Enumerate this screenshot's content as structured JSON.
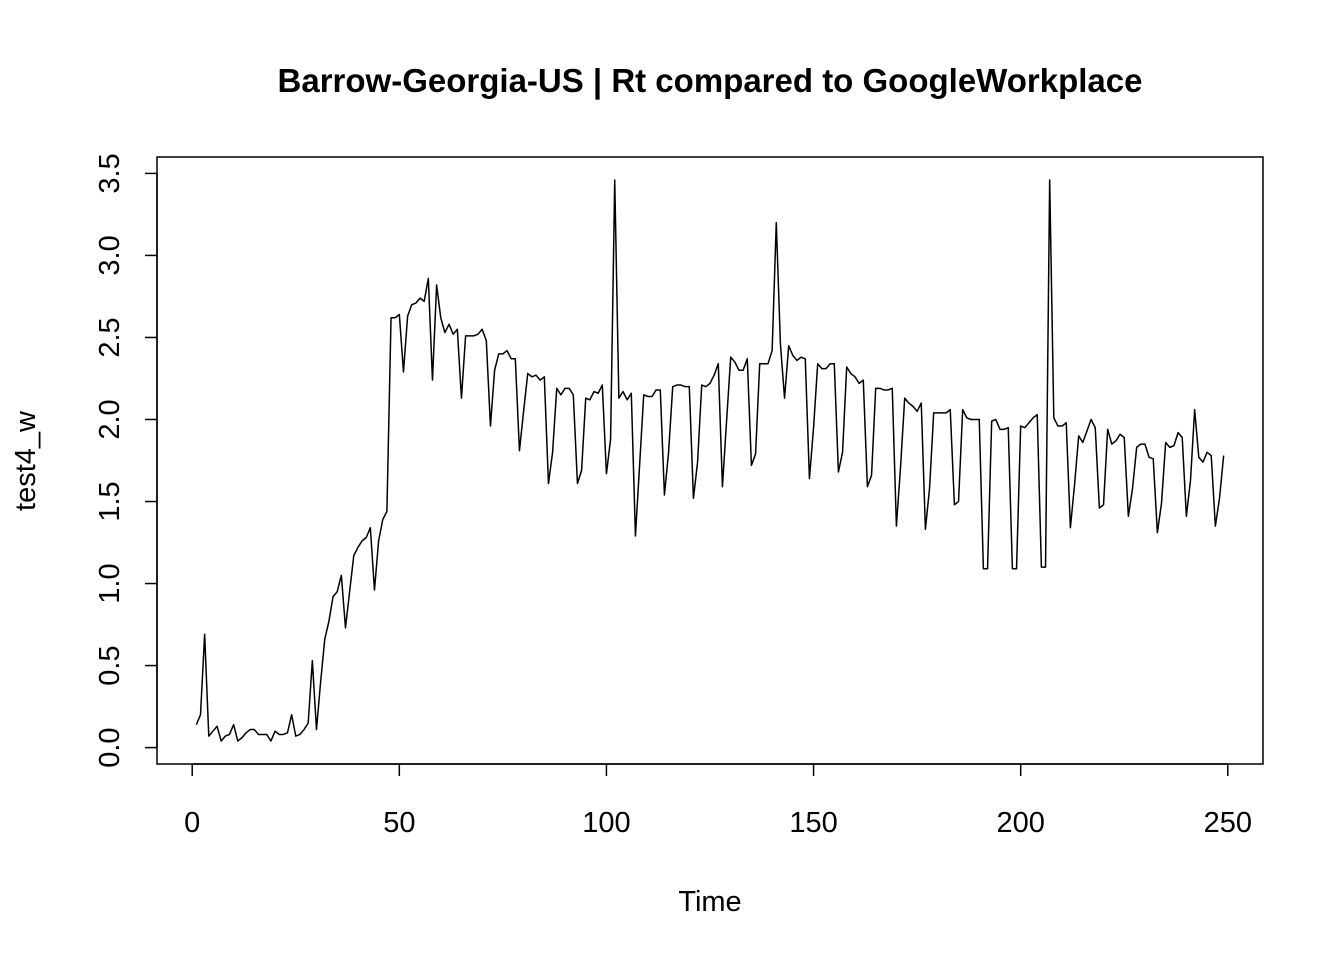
{
  "chart_data": {
    "type": "line",
    "title": "Barrow-Georgia-US | Rt compared to GoogleWorkplace",
    "xlabel": "Time",
    "ylabel": "test4_w",
    "xlim": [
      -8.5,
      258.5
    ],
    "ylim": [
      -0.1,
      3.6
    ],
    "x_ticks": [
      0,
      50,
      100,
      150,
      200,
      250
    ],
    "y_ticks": [
      0.0,
      0.5,
      1.0,
      1.5,
      2.0,
      2.5,
      3.0,
      3.5
    ],
    "x_tick_labels": [
      "0",
      "50",
      "100",
      "150",
      "200",
      "250"
    ],
    "y_tick_labels": [
      "0.0",
      "0.5",
      "1.0",
      "1.5",
      "2.0",
      "2.5",
      "3.0",
      "3.5"
    ],
    "grid": false,
    "legend": "none",
    "series": [
      {
        "values": [
          0.14,
          0.2,
          0.69,
          0.07,
          0.1,
          0.13,
          0.04,
          0.07,
          0.08,
          0.14,
          0.04,
          0.06,
          0.09,
          0.11,
          0.11,
          0.08,
          0.08,
          0.08,
          0.04,
          0.1,
          0.08,
          0.08,
          0.09,
          0.2,
          0.07,
          0.08,
          0.11,
          0.15,
          0.53,
          0.11,
          0.4,
          0.66,
          0.77,
          0.92,
          0.95,
          1.05,
          0.73,
          0.95,
          1.17,
          1.22,
          1.26,
          1.28,
          1.34,
          0.96,
          1.26,
          1.39,
          1.44,
          2.62,
          2.62,
          2.64,
          2.29,
          2.63,
          2.7,
          2.71,
          2.74,
          2.72,
          2.86,
          2.24,
          2.82,
          2.62,
          2.53,
          2.58,
          2.52,
          2.55,
          2.13,
          2.51,
          2.51,
          2.51,
          2.52,
          2.55,
          2.48,
          1.96,
          2.3,
          2.4,
          2.4,
          2.42,
          2.37,
          2.37,
          1.81,
          2.05,
          2.28,
          2.26,
          2.27,
          2.24,
          2.26,
          1.61,
          1.8,
          2.19,
          2.15,
          2.19,
          2.19,
          2.15,
          1.61,
          1.69,
          2.13,
          2.12,
          2.17,
          2.16,
          2.21,
          1.67,
          1.88,
          3.46,
          2.13,
          2.17,
          2.12,
          2.16,
          1.29,
          1.72,
          2.15,
          2.14,
          2.14,
          2.18,
          2.18,
          1.54,
          1.8,
          2.2,
          2.21,
          2.21,
          2.2,
          2.2,
          1.52,
          1.74,
          2.21,
          2.2,
          2.22,
          2.27,
          2.34,
          1.59,
          1.99,
          2.38,
          2.35,
          2.3,
          2.3,
          2.37,
          1.72,
          1.79,
          2.34,
          2.34,
          2.34,
          2.42,
          3.2,
          2.46,
          2.13,
          2.45,
          2.39,
          2.36,
          2.38,
          2.37,
          1.64,
          1.95,
          2.34,
          2.31,
          2.31,
          2.34,
          2.34,
          1.68,
          1.8,
          2.32,
          2.28,
          2.26,
          2.22,
          2.24,
          1.59,
          1.66,
          2.19,
          2.19,
          2.18,
          2.18,
          2.19,
          1.35,
          1.71,
          2.13,
          2.1,
          2.08,
          2.05,
          2.1,
          1.33,
          1.58,
          2.04,
          2.04,
          2.04,
          2.04,
          2.06,
          1.48,
          1.5,
          2.06,
          2.01,
          2.0,
          2.0,
          2.0,
          1.09,
          1.09,
          1.99,
          2.0,
          1.94,
          1.94,
          1.95,
          1.09,
          1.09,
          1.96,
          1.95,
          1.98,
          2.01,
          2.03,
          1.1,
          1.1,
          3.46,
          2.01,
          1.96,
          1.96,
          1.98,
          1.34,
          1.6,
          1.9,
          1.86,
          1.93,
          2.0,
          1.95,
          1.46,
          1.48,
          1.94,
          1.85,
          1.87,
          1.91,
          1.89,
          1.41,
          1.58,
          1.83,
          1.85,
          1.85,
          1.77,
          1.76,
          1.31,
          1.49,
          1.86,
          1.83,
          1.84,
          1.92,
          1.89,
          1.41,
          1.63,
          2.06,
          1.77,
          1.74,
          1.8,
          1.78,
          1.35,
          1.52,
          1.78
        ]
      }
    ]
  }
}
